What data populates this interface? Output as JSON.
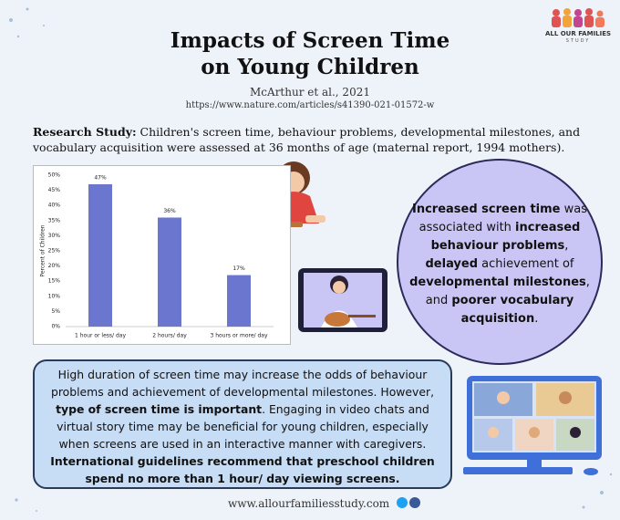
{
  "header": {
    "title": [
      "Impacts of Screen Time",
      "on Young Children"
    ],
    "citation": "McArthur et al., 2021",
    "url": "https://www.nature.com/articles/s41390-021-01572-w",
    "logo": [
      "ALL OUR FAMILIES",
      "STUDY"
    ]
  },
  "research": [
    {
      "text": "Research Study:",
      "bold": true
    },
    {
      "text": " Children's screen time, behaviour problems, developmental milestones, and vocabulary acquisition were assessed at 36 months of age (maternal report, 1994 mothers).",
      "bold": false
    }
  ],
  "chart_data": {
    "type": "bar",
    "y_label": "Percent of Children",
    "categories": [
      "1 hour or less/ day",
      "2 hours/ day",
      "3 hours or more/ day"
    ],
    "values": [
      47,
      36,
      17
    ],
    "value_labels": [
      "47%",
      "36%",
      "17%"
    ],
    "color": "#6b77cf",
    "ylim": [
      0,
      50
    ],
    "yticks": [
      {
        "value": 0,
        "label": "0%"
      },
      {
        "value": 5,
        "label": "5%"
      },
      {
        "value": 10,
        "label": "10%"
      },
      {
        "value": 15,
        "label": "15%"
      },
      {
        "value": 20,
        "label": "20%"
      },
      {
        "value": 25,
        "label": "25%"
      },
      {
        "value": 30,
        "label": "30%"
      },
      {
        "value": 35,
        "label": "35%"
      },
      {
        "value": 40,
        "label": "40%"
      },
      {
        "value": 45,
        "label": "45%"
      },
      {
        "value": 50,
        "label": "50%"
      }
    ],
    "grid": false
  },
  "finding": [
    {
      "text": "Increased screen time",
      "bold": true
    },
    {
      "text": " was associated with ",
      "bold": false
    },
    {
      "text": "increased behaviour problems",
      "bold": true
    },
    {
      "text": ", ",
      "bold": false
    },
    {
      "text": "delayed",
      "bold": true
    },
    {
      "text": " achievement of ",
      "bold": false
    },
    {
      "text": "developmental milestones",
      "bold": true
    },
    {
      "text": ", and ",
      "bold": false
    },
    {
      "text": "poorer vocabulary acquisition",
      "bold": true
    },
    {
      "text": ".",
      "bold": false
    }
  ],
  "summary": [
    {
      "text": "High duration of screen time may increase the odds of behaviour problems and achievement of developmental milestones. However, ",
      "bold": false
    },
    {
      "text": "type of screen time is important",
      "bold": true
    },
    {
      "text": ". Engaging in video chats and virtual story time may be beneficial for young children, especially when screens are used in an interactive manner with caregivers. ",
      "bold": false
    },
    {
      "text": "International guidelines recommend that preschool children spend no more than 1 hour/ day viewing screens.",
      "bold": true
    }
  ],
  "footer": "www.allourfamiliesstudy.com"
}
